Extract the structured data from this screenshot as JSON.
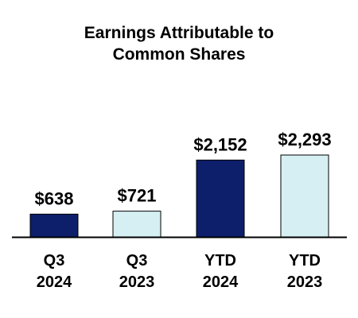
{
  "chart_data": {
    "type": "bar",
    "title_lines": [
      "Earnings Attributable to",
      "Common Shares"
    ],
    "categories": [
      [
        "Q3",
        "2024"
      ],
      [
        "Q3",
        "2023"
      ],
      [
        "YTD",
        "2024"
      ],
      [
        "YTD",
        "2023"
      ]
    ],
    "values": [
      638,
      721,
      2152,
      2293
    ],
    "value_labels": [
      "$638",
      "$721",
      "$2,152",
      "$2,293"
    ],
    "bar_colors": [
      "#0d1f6b",
      "#d6eff3",
      "#0d1f6b",
      "#d6eff3"
    ],
    "bar_stroke": "#000000",
    "ylim": [
      0,
      2293
    ],
    "grid": false,
    "legend": "none"
  }
}
